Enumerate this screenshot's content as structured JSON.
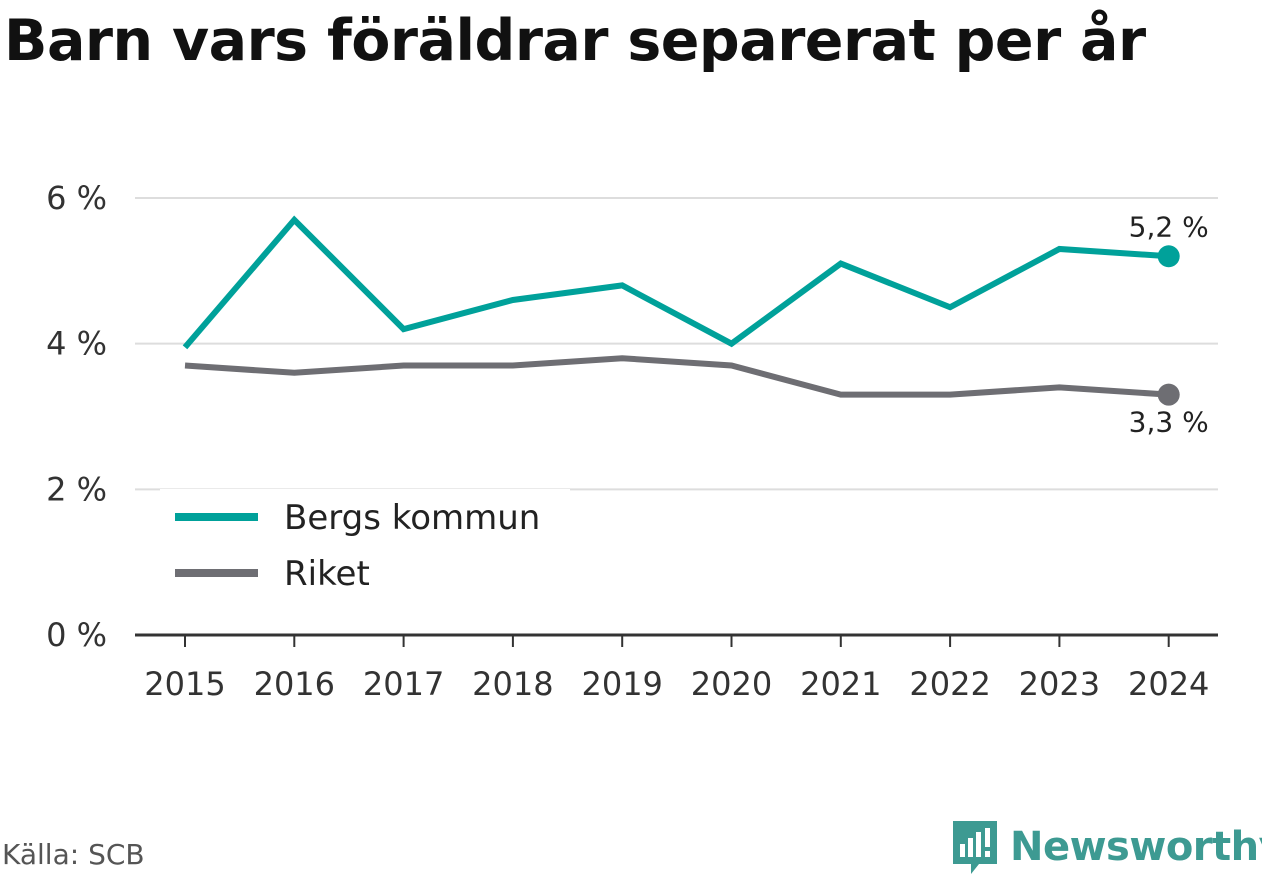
{
  "chart_data": {
    "type": "line",
    "title": "Barn vars föräldrar separerat per år",
    "x": [
      "2015",
      "2016",
      "2017",
      "2018",
      "2019",
      "2020",
      "2021",
      "2022",
      "2023",
      "2024"
    ],
    "series": [
      {
        "name": "Bergs kommun",
        "color": "#00a19a",
        "values": [
          3.95,
          5.7,
          4.2,
          4.6,
          4.8,
          4.0,
          5.1,
          4.5,
          5.3,
          5.2
        ],
        "end_label": "5,2 %"
      },
      {
        "name": "Riket",
        "color": "#6e6e73",
        "values": [
          3.7,
          3.6,
          3.7,
          3.7,
          3.8,
          3.7,
          3.3,
          3.3,
          3.4,
          3.3
        ],
        "end_label": "3,3 %"
      }
    ],
    "yticks": [
      {
        "value": 0,
        "label": "0 %"
      },
      {
        "value": 2,
        "label": "2 %"
      },
      {
        "value": 4,
        "label": "4 %"
      },
      {
        "value": 6,
        "label": "6 %"
      }
    ],
    "ylim": [
      0,
      6
    ],
    "grid": true,
    "legend_position": "bottom-left"
  },
  "source": "Källa: SCB",
  "brand": {
    "name": "Newsworthy",
    "icon": "newsworthy-logo-icon",
    "color": "#3d9a92"
  }
}
